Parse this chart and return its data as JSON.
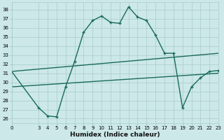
{
  "xlabel": "Humidex (Indice chaleur)",
  "bg_color": "#cce8e8",
  "grid_color": "#aacccc",
  "line_color": "#1a6b5a",
  "xlim": [
    0,
    23
  ],
  "ylim": [
    25.5,
    38.8
  ],
  "yticks": [
    26,
    27,
    28,
    29,
    30,
    31,
    32,
    33,
    34,
    35,
    36,
    37,
    38
  ],
  "xticks": [
    0,
    3,
    4,
    5,
    6,
    7,
    8,
    9,
    10,
    11,
    12,
    13,
    14,
    15,
    16,
    17,
    18,
    19,
    20,
    21,
    22,
    23
  ],
  "curve1_x": [
    0,
    3,
    4,
    5,
    6,
    7,
    8,
    9,
    10,
    11,
    12,
    13,
    14,
    15,
    16,
    17,
    18,
    19,
    20,
    21,
    22,
    23
  ],
  "curve1_y": [
    31.2,
    27.2,
    26.3,
    26.2,
    29.5,
    32.3,
    35.5,
    36.8,
    37.3,
    36.6,
    36.5,
    38.3,
    37.2,
    36.8,
    35.2,
    33.2,
    33.2,
    27.2,
    29.5,
    30.5,
    31.2,
    31.3
  ],
  "line1_x": [
    0,
    23
  ],
  "line1_y": [
    31.2,
    33.2
  ],
  "line2_x": [
    0,
    23
  ],
  "line2_y": [
    29.5,
    31.0
  ],
  "marker_x": [
    3,
    4,
    5,
    6,
    7,
    8,
    9,
    10,
    11,
    12,
    13,
    14,
    15,
    16,
    17,
    18,
    19,
    20,
    21,
    22,
    23
  ],
  "marker_y": [
    27.2,
    26.3,
    26.2,
    29.5,
    32.3,
    35.5,
    36.8,
    37.3,
    36.6,
    36.5,
    38.3,
    37.2,
    36.8,
    35.2,
    33.2,
    33.2,
    27.2,
    29.5,
    30.5,
    31.2,
    31.3
  ],
  "xlabel_fontsize": 6.5,
  "tick_fontsize": 5.0,
  "linewidth": 1.0
}
